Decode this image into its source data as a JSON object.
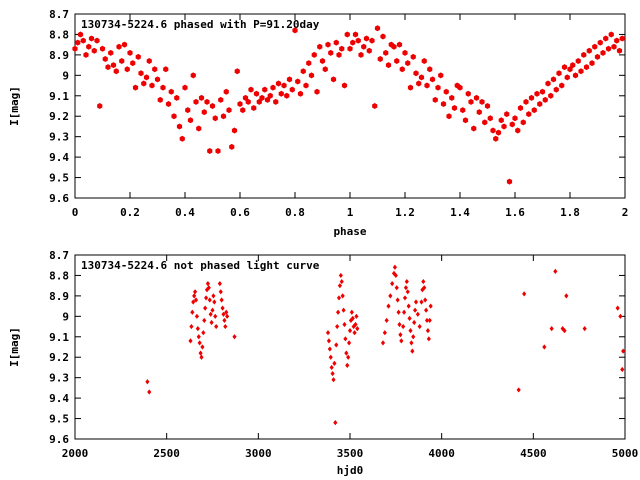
{
  "chart_data": [
    {
      "type": "scatter",
      "title": "130734-5224.6 phased with P=91.20day",
      "xlabel": "phase",
      "ylabel": "I[mag]",
      "xlim": [
        0,
        2
      ],
      "ylim": [
        9.6,
        8.7
      ],
      "y_inverted": true,
      "x_ticks": [
        "0",
        "0.2",
        "0.4",
        "0.6",
        "0.8",
        "1",
        "1.2",
        "1.4",
        "1.6",
        "1.8",
        "2"
      ],
      "y_ticks": [
        "8.7",
        "8.8",
        "8.9",
        "9",
        "9.1",
        "9.2",
        "9.3",
        "9.4",
        "9.5",
        "9.6"
      ],
      "grid": false,
      "marker_color": "#ee0000",
      "marker": "filled-hexagon",
      "points": [
        [
          0.0,
          8.87
        ],
        [
          0.01,
          8.84
        ],
        [
          0.02,
          8.8
        ],
        [
          0.03,
          8.83
        ],
        [
          0.04,
          8.9
        ],
        [
          0.05,
          8.86
        ],
        [
          0.06,
          8.82
        ],
        [
          0.07,
          8.88
        ],
        [
          0.08,
          8.83
        ],
        [
          0.09,
          9.15
        ],
        [
          0.1,
          8.87
        ],
        [
          0.11,
          8.92
        ],
        [
          0.12,
          8.96
        ],
        [
          0.13,
          8.89
        ],
        [
          0.14,
          8.95
        ],
        [
          0.15,
          8.98
        ],
        [
          0.16,
          8.86
        ],
        [
          0.17,
          8.93
        ],
        [
          0.18,
          8.85
        ],
        [
          0.19,
          8.97
        ],
        [
          0.2,
          8.89
        ],
        [
          0.21,
          8.94
        ],
        [
          0.22,
          9.06
        ],
        [
          0.23,
          8.91
        ],
        [
          0.24,
          8.99
        ],
        [
          0.25,
          9.04
        ],
        [
          0.26,
          9.01
        ],
        [
          0.27,
          8.93
        ],
        [
          0.28,
          9.05
        ],
        [
          0.29,
          8.97
        ],
        [
          0.3,
          9.02
        ],
        [
          0.31,
          9.12
        ],
        [
          0.32,
          9.06
        ],
        [
          0.33,
          8.97
        ],
        [
          0.34,
          9.14
        ],
        [
          0.35,
          9.08
        ],
        [
          0.36,
          9.2
        ],
        [
          0.37,
          9.11
        ],
        [
          0.38,
          9.25
        ],
        [
          0.39,
          9.31
        ],
        [
          0.4,
          9.06
        ],
        [
          0.41,
          9.17
        ],
        [
          0.42,
          9.22
        ],
        [
          0.43,
          9.0
        ],
        [
          0.44,
          9.13
        ],
        [
          0.45,
          9.26
        ],
        [
          0.46,
          9.11
        ],
        [
          0.47,
          9.18
        ],
        [
          0.48,
          9.13
        ],
        [
          0.49,
          9.37
        ],
        [
          0.5,
          9.15
        ],
        [
          0.51,
          9.21
        ],
        [
          0.52,
          9.37
        ],
        [
          0.53,
          9.12
        ],
        [
          0.54,
          9.2
        ],
        [
          0.55,
          9.08
        ],
        [
          0.56,
          9.17
        ],
        [
          0.57,
          9.35
        ],
        [
          0.58,
          9.27
        ],
        [
          0.59,
          8.98
        ],
        [
          0.6,
          9.14
        ],
        [
          0.61,
          9.17
        ],
        [
          0.62,
          9.11
        ],
        [
          0.63,
          9.13
        ],
        [
          0.64,
          9.07
        ],
        [
          0.65,
          9.16
        ],
        [
          0.66,
          9.09
        ],
        [
          0.67,
          9.13
        ],
        [
          0.68,
          9.11
        ],
        [
          0.69,
          9.07
        ],
        [
          0.7,
          9.12
        ],
        [
          0.71,
          9.1
        ],
        [
          0.72,
          9.06
        ],
        [
          0.73,
          9.13
        ],
        [
          0.74,
          9.04
        ],
        [
          0.75,
          9.09
        ],
        [
          0.76,
          9.05
        ],
        [
          0.77,
          9.1
        ],
        [
          0.78,
          9.02
        ],
        [
          0.79,
          9.07
        ],
        [
          0.8,
          8.78
        ],
        [
          0.81,
          9.03
        ],
        [
          0.82,
          9.09
        ],
        [
          0.83,
          8.98
        ],
        [
          0.84,
          9.05
        ],
        [
          0.85,
          8.94
        ],
        [
          0.86,
          9.0
        ],
        [
          0.87,
          8.9
        ],
        [
          0.88,
          9.08
        ],
        [
          0.89,
          8.86
        ],
        [
          0.9,
          8.93
        ],
        [
          0.91,
          8.97
        ],
        [
          0.92,
          8.85
        ],
        [
          0.93,
          8.89
        ],
        [
          0.94,
          9.02
        ],
        [
          0.95,
          8.84
        ],
        [
          0.96,
          8.9
        ],
        [
          0.97,
          8.87
        ],
        [
          0.98,
          9.05
        ],
        [
          0.99,
          8.8
        ],
        [
          1.0,
          8.87
        ],
        [
          1.01,
          8.84
        ],
        [
          1.02,
          8.8
        ],
        [
          1.03,
          8.83
        ],
        [
          1.04,
          8.9
        ],
        [
          1.05,
          8.86
        ],
        [
          1.06,
          8.82
        ],
        [
          1.07,
          8.88
        ],
        [
          1.08,
          8.83
        ],
        [
          1.09,
          9.15
        ],
        [
          1.1,
          8.77
        ],
        [
          1.11,
          8.92
        ],
        [
          1.12,
          8.81
        ],
        [
          1.13,
          8.89
        ],
        [
          1.14,
          8.95
        ],
        [
          1.15,
          8.85
        ],
        [
          1.16,
          8.86
        ],
        [
          1.17,
          8.93
        ],
        [
          1.18,
          8.85
        ],
        [
          1.19,
          8.97
        ],
        [
          1.2,
          8.89
        ],
        [
          1.21,
          8.94
        ],
        [
          1.22,
          9.06
        ],
        [
          1.23,
          8.91
        ],
        [
          1.24,
          8.99
        ],
        [
          1.25,
          9.04
        ],
        [
          1.26,
          9.01
        ],
        [
          1.27,
          8.93
        ],
        [
          1.28,
          9.05
        ],
        [
          1.29,
          8.97
        ],
        [
          1.3,
          9.02
        ],
        [
          1.31,
          9.12
        ],
        [
          1.32,
          9.06
        ],
        [
          1.33,
          9.0
        ],
        [
          1.34,
          9.14
        ],
        [
          1.35,
          9.08
        ],
        [
          1.36,
          9.2
        ],
        [
          1.37,
          9.11
        ],
        [
          1.38,
          9.16
        ],
        [
          1.39,
          9.05
        ],
        [
          1.4,
          9.06
        ],
        [
          1.41,
          9.17
        ],
        [
          1.42,
          9.22
        ],
        [
          1.43,
          9.09
        ],
        [
          1.44,
          9.13
        ],
        [
          1.45,
          9.26
        ],
        [
          1.46,
          9.11
        ],
        [
          1.47,
          9.18
        ],
        [
          1.48,
          9.13
        ],
        [
          1.49,
          9.23
        ],
        [
          1.5,
          9.15
        ],
        [
          1.51,
          9.21
        ],
        [
          1.52,
          9.27
        ],
        [
          1.53,
          9.31
        ],
        [
          1.54,
          9.28
        ],
        [
          1.55,
          9.22
        ],
        [
          1.56,
          9.25
        ],
        [
          1.57,
          9.19
        ],
        [
          1.58,
          9.52
        ],
        [
          1.59,
          9.24
        ],
        [
          1.6,
          9.21
        ],
        [
          1.61,
          9.27
        ],
        [
          1.62,
          9.16
        ],
        [
          1.63,
          9.23
        ],
        [
          1.64,
          9.13
        ],
        [
          1.65,
          9.19
        ],
        [
          1.66,
          9.11
        ],
        [
          1.67,
          9.17
        ],
        [
          1.68,
          9.09
        ],
        [
          1.69,
          9.14
        ],
        [
          1.7,
          9.08
        ],
        [
          1.71,
          9.12
        ],
        [
          1.72,
          9.04
        ],
        [
          1.73,
          9.1
        ],
        [
          1.74,
          9.02
        ],
        [
          1.75,
          9.07
        ],
        [
          1.76,
          8.99
        ],
        [
          1.77,
          9.05
        ],
        [
          1.78,
          8.96
        ],
        [
          1.79,
          9.01
        ],
        [
          1.8,
          8.97
        ],
        [
          1.81,
          8.95
        ],
        [
          1.82,
          9.0
        ],
        [
          1.83,
          8.93
        ],
        [
          1.84,
          8.98
        ],
        [
          1.85,
          8.9
        ],
        [
          1.86,
          8.96
        ],
        [
          1.87,
          8.88
        ],
        [
          1.88,
          8.94
        ],
        [
          1.89,
          8.86
        ],
        [
          1.9,
          8.91
        ],
        [
          1.91,
          8.84
        ],
        [
          1.92,
          8.89
        ],
        [
          1.93,
          8.82
        ],
        [
          1.94,
          8.87
        ],
        [
          1.95,
          8.8
        ],
        [
          1.96,
          8.86
        ],
        [
          1.97,
          8.83
        ],
        [
          1.98,
          8.88
        ],
        [
          1.99,
          8.82
        ]
      ]
    },
    {
      "type": "scatter",
      "title": "130734-5224.6 not phased light curve",
      "xlabel": "hjd0",
      "ylabel": "I[mag]",
      "xlim": [
        2000,
        5000
      ],
      "ylim": [
        9.6,
        8.7
      ],
      "y_inverted": true,
      "x_ticks": [
        "2000",
        "2500",
        "3000",
        "3500",
        "4000",
        "4500",
        "5000"
      ],
      "y_ticks": [
        "8.7",
        "8.8",
        "8.9",
        "9",
        "9.1",
        "9.2",
        "9.3",
        "9.4",
        "9.5",
        "9.6"
      ],
      "grid": false,
      "marker_color": "#ee0000",
      "marker": "filled-diamond",
      "points": [
        [
          2395,
          9.32
        ],
        [
          2405,
          9.37
        ],
        [
          2630,
          9.12
        ],
        [
          2635,
          9.05
        ],
        [
          2640,
          8.98
        ],
        [
          2645,
          8.93
        ],
        [
          2650,
          8.9
        ],
        [
          2655,
          8.88
        ],
        [
          2660,
          8.92
        ],
        [
          2665,
          9.0
        ],
        [
          2670,
          9.06
        ],
        [
          2675,
          9.1
        ],
        [
          2680,
          9.13
        ],
        [
          2685,
          9.18
        ],
        [
          2690,
          9.2
        ],
        [
          2695,
          9.15
        ],
        [
          2700,
          9.08
        ],
        [
          2705,
          9.02
        ],
        [
          2710,
          8.96
        ],
        [
          2715,
          8.91
        ],
        [
          2720,
          8.87
        ],
        [
          2725,
          8.84
        ],
        [
          2730,
          8.86
        ],
        [
          2735,
          8.92
        ],
        [
          2740,
          8.99
        ],
        [
          2745,
          9.03
        ],
        [
          2750,
          8.97
        ],
        [
          2755,
          8.9
        ],
        [
          2760,
          8.93
        ],
        [
          2765,
          9.0
        ],
        [
          2770,
          9.05
        ],
        [
          2790,
          8.84
        ],
        [
          2795,
          8.88
        ],
        [
          2800,
          8.92
        ],
        [
          2805,
          8.96
        ],
        [
          2810,
          8.99
        ],
        [
          2815,
          9.02
        ],
        [
          2820,
          9.05
        ],
        [
          2825,
          8.98
        ],
        [
          2830,
          9.0
        ],
        [
          2870,
          9.1
        ],
        [
          3380,
          9.08
        ],
        [
          3385,
          9.12
        ],
        [
          3390,
          9.16
        ],
        [
          3395,
          9.2
        ],
        [
          3400,
          9.25
        ],
        [
          3405,
          9.28
        ],
        [
          3410,
          9.31
        ],
        [
          3415,
          9.23
        ],
        [
          3420,
          9.52
        ],
        [
          3425,
          9.14
        ],
        [
          3430,
          9.05
        ],
        [
          3435,
          8.98
        ],
        [
          3440,
          8.91
        ],
        [
          3445,
          8.85
        ],
        [
          3450,
          8.8
        ],
        [
          3455,
          8.83
        ],
        [
          3460,
          8.9
        ],
        [
          3465,
          8.97
        ],
        [
          3470,
          9.04
        ],
        [
          3475,
          9.11
        ],
        [
          3480,
          9.18
        ],
        [
          3485,
          9.24
        ],
        [
          3490,
          9.2
        ],
        [
          3495,
          9.13
        ],
        [
          3500,
          9.07
        ],
        [
          3505,
          9.02
        ],
        [
          3510,
          8.98
        ],
        [
          3515,
          9.01
        ],
        [
          3520,
          9.05
        ],
        [
          3525,
          9.08
        ],
        [
          3530,
          9.04
        ],
        [
          3535,
          9.0
        ],
        [
          3540,
          9.06
        ],
        [
          3680,
          9.13
        ],
        [
          3690,
          9.08
        ],
        [
          3700,
          9.02
        ],
        [
          3710,
          8.95
        ],
        [
          3720,
          8.9
        ],
        [
          3730,
          8.84
        ],
        [
          3740,
          8.79
        ],
        [
          3745,
          8.76
        ],
        [
          3750,
          8.8
        ],
        [
          3755,
          8.86
        ],
        [
          3760,
          8.92
        ],
        [
          3765,
          8.98
        ],
        [
          3770,
          9.04
        ],
        [
          3775,
          9.09
        ],
        [
          3780,
          9.12
        ],
        [
          3790,
          9.05
        ],
        [
          3795,
          8.98
        ],
        [
          3800,
          8.91
        ],
        [
          3805,
          8.86
        ],
        [
          3810,
          8.83
        ],
        [
          3815,
          8.88
        ],
        [
          3820,
          8.95
        ],
        [
          3825,
          9.01
        ],
        [
          3830,
          9.07
        ],
        [
          3835,
          9.13
        ],
        [
          3840,
          9.17
        ],
        [
          3845,
          9.1
        ],
        [
          3850,
          9.03
        ],
        [
          3855,
          8.97
        ],
        [
          3860,
          8.93
        ],
        [
          3870,
          8.99
        ],
        [
          3880,
          9.05
        ],
        [
          3890,
          8.93
        ],
        [
          3895,
          8.87
        ],
        [
          3900,
          8.83
        ],
        [
          3905,
          8.86
        ],
        [
          3910,
          8.92
        ],
        [
          3915,
          8.97
        ],
        [
          3920,
          9.02
        ],
        [
          3925,
          9.07
        ],
        [
          3930,
          9.11
        ],
        [
          3935,
          9.02
        ],
        [
          3940,
          8.95
        ],
        [
          4420,
          9.36
        ],
        [
          4450,
          8.89
        ],
        [
          4560,
          9.15
        ],
        [
          4600,
          9.06
        ],
        [
          4620,
          8.78
        ],
        [
          4660,
          9.06
        ],
        [
          4670,
          9.07
        ],
        [
          4680,
          8.9
        ],
        [
          4780,
          9.06
        ],
        [
          4960,
          8.96
        ],
        [
          4975,
          9.0
        ],
        [
          4985,
          9.26
        ],
        [
          4990,
          9.17
        ]
      ]
    }
  ]
}
